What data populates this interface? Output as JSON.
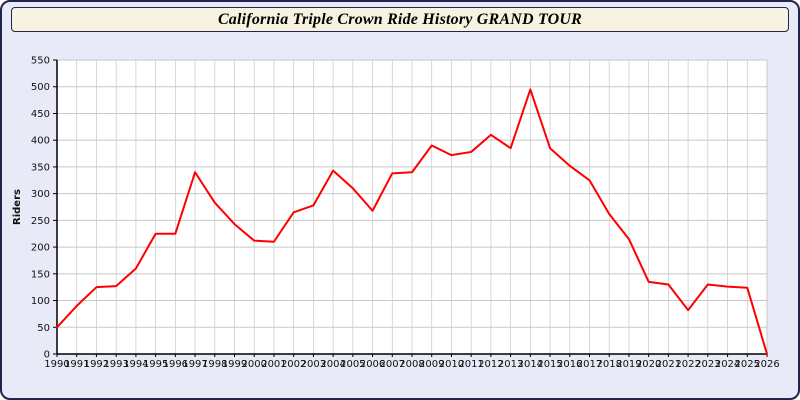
{
  "window": {
    "title": "California Triple Crown Ride History GRAND TOUR"
  },
  "colors": {
    "page_bg": "#e9eaf8",
    "title_bg": "#f8f3e0",
    "border": "#23234f",
    "plot_bg": "#ffffff",
    "grid": "#c8c8c8",
    "axis": "#000000",
    "label": "#111111",
    "line": "#ff0000"
  },
  "chart_data": {
    "type": "line",
    "title": "California Triple Crown Ride History GRAND TOUR",
    "xlabel": "",
    "ylabel": "Riders",
    "ylim": [
      0,
      550
    ],
    "ytick_step": 50,
    "grid": true,
    "legend": "none",
    "x": [
      1990,
      1991,
      1992,
      1993,
      1994,
      1995,
      1996,
      1997,
      1998,
      1999,
      2000,
      2001,
      2002,
      2003,
      2004,
      2005,
      2006,
      2007,
      2008,
      2009,
      2010,
      2011,
      2012,
      2013,
      2014,
      2015,
      2016,
      2017,
      2018,
      2019,
      2020,
      2021,
      2022,
      2023,
      2024,
      2025,
      2026
    ],
    "values": [
      50,
      90,
      125,
      127,
      160,
      225,
      225,
      340,
      283,
      243,
      212,
      210,
      265,
      278,
      343,
      310,
      268,
      338,
      340,
      390,
      372,
      378,
      410,
      385,
      495,
      385,
      352,
      325,
      262,
      215,
      135,
      130,
      82,
      130,
      126,
      124,
      0
    ]
  }
}
